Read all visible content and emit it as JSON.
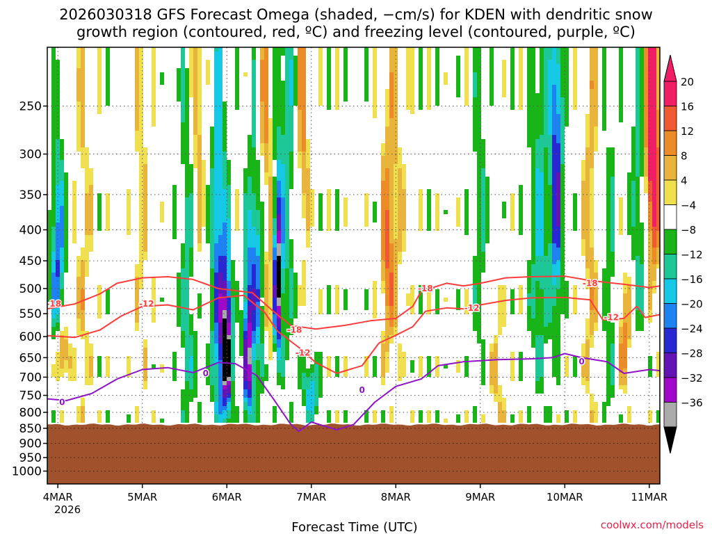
{
  "chart_data": {
    "type": "heatmap",
    "title_line1": "2026030318 GFS Forecast Omega (shaded, −cm/s) for KDEN with dendritic snow",
    "title_line2": "growth region (contoured, red, ºC) and freezing level (contoured, purple, ºC)",
    "xlabel": "Forecast Time (UTC)",
    "credit": "coolwx.com/models",
    "x_ticks": [
      "4MAR",
      "5MAR",
      "6MAR",
      "7MAR",
      "8MAR",
      "9MAR",
      "10MAR",
      "11MAR"
    ],
    "x_tick_year": "2026",
    "x_range_days": [
      3.875,
      11.125
    ],
    "y_ticks": [
      250,
      300,
      350,
      400,
      450,
      500,
      550,
      600,
      650,
      700,
      750,
      800,
      850,
      900,
      950,
      1000
    ],
    "y_range_hpa": [
      200,
      1050
    ],
    "y_scale": "log-pressure",
    "surface_pressure_hpa": 838,
    "grid": "dotted",
    "colorbar": {
      "labels": [
        "20",
        "16",
        "12",
        "8",
        "4",
        "−4",
        "−8",
        "−12",
        "−16",
        "−20",
        "−24",
        "−28",
        "−32",
        "−36"
      ],
      "colors": [
        "#f01e64",
        "#f05a32",
        "#ec8c28",
        "#e8b43c",
        "#f0e050",
        "#ffffff",
        "#18b418",
        "#1ec896",
        "#14c8e6",
        "#1e82f0",
        "#2828d2",
        "#6414b4",
        "#a008c8",
        "#aaaaaa"
      ],
      "top_triangle_color": "#f01e64",
      "bottom_triangle_color": "#000000"
    },
    "series": [
      {
        "name": "-18",
        "color": "#ff3c3c",
        "label_positions": [
          [
            3.95,
            530
          ],
          [
            6.8,
            585
          ],
          [
            8.35,
            500
          ],
          [
            10.3,
            490
          ]
        ],
        "points": [
          [
            3.875,
            540
          ],
          [
            4.2,
            530
          ],
          [
            4.5,
            510
          ],
          [
            4.7,
            490
          ],
          [
            5.0,
            480
          ],
          [
            5.3,
            478
          ],
          [
            5.6,
            483
          ],
          [
            5.9,
            500
          ],
          [
            6.3,
            508
          ],
          [
            6.55,
            545
          ],
          [
            6.75,
            575
          ],
          [
            7.05,
            583
          ],
          [
            7.4,
            575
          ],
          [
            7.7,
            565
          ],
          [
            8.0,
            560
          ],
          [
            8.2,
            535
          ],
          [
            8.3,
            505
          ],
          [
            8.6,
            490
          ],
          [
            8.8,
            495
          ],
          [
            9.0,
            490
          ],
          [
            9.3,
            480
          ],
          [
            9.6,
            478
          ],
          [
            10.0,
            477
          ],
          [
            10.3,
            485
          ],
          [
            10.7,
            492
          ],
          [
            11.0,
            498
          ],
          [
            11.125,
            495
          ]
        ]
      },
      {
        "name": "-12",
        "color": "#ff3c3c",
        "label_positions": [
          [
            5.05,
            530
          ],
          [
            6.9,
            638
          ],
          [
            8.9,
            538
          ],
          [
            10.55,
            558
          ]
        ],
        "points": [
          [
            3.875,
            598
          ],
          [
            4.2,
            602
          ],
          [
            4.5,
            585
          ],
          [
            4.75,
            555
          ],
          [
            5.0,
            535
          ],
          [
            5.3,
            532
          ],
          [
            5.6,
            542
          ],
          [
            5.9,
            518
          ],
          [
            6.2,
            513
          ],
          [
            6.45,
            548
          ],
          [
            6.6,
            588
          ],
          [
            6.85,
            625
          ],
          [
            7.05,
            662
          ],
          [
            7.3,
            690
          ],
          [
            7.6,
            670
          ],
          [
            7.8,
            615
          ],
          [
            8.0,
            597
          ],
          [
            8.2,
            578
          ],
          [
            8.35,
            545
          ],
          [
            8.6,
            538
          ],
          [
            8.8,
            540
          ],
          [
            9.0,
            532
          ],
          [
            9.3,
            523
          ],
          [
            9.6,
            518
          ],
          [
            10.0,
            517
          ],
          [
            10.3,
            522
          ],
          [
            10.45,
            563
          ],
          [
            10.7,
            560
          ],
          [
            10.85,
            535
          ],
          [
            10.95,
            558
          ],
          [
            11.125,
            552
          ]
        ]
      },
      {
        "name": "0",
        "color": "#9012c8",
        "label_positions": [
          [
            4.05,
            770
          ],
          [
            5.75,
            690
          ],
          [
            7.6,
            735
          ],
          [
            10.2,
            660
          ]
        ],
        "points": [
          [
            3.875,
            760
          ],
          [
            4.1,
            765
          ],
          [
            4.4,
            745
          ],
          [
            4.7,
            705
          ],
          [
            5.0,
            680
          ],
          [
            5.3,
            675
          ],
          [
            5.6,
            688
          ],
          [
            5.9,
            662
          ],
          [
            6.1,
            665
          ],
          [
            6.35,
            695
          ],
          [
            6.55,
            760
          ],
          [
            6.75,
            835
          ],
          [
            6.85,
            860
          ],
          [
            7.0,
            830
          ],
          [
            7.3,
            855
          ],
          [
            7.5,
            838
          ],
          [
            7.75,
            770
          ],
          [
            8.0,
            725
          ],
          [
            8.3,
            705
          ],
          [
            8.5,
            670
          ],
          [
            8.8,
            660
          ],
          [
            9.2,
            655
          ],
          [
            9.6,
            653
          ],
          [
            9.85,
            650
          ],
          [
            10.0,
            640
          ],
          [
            10.2,
            650
          ],
          [
            10.5,
            660
          ],
          [
            10.7,
            690
          ],
          [
            11.0,
            680
          ],
          [
            11.125,
            683
          ]
        ]
      }
    ],
    "omega_blobs": [
      [
        6.0,
        630,
        0.045,
        130,
        -36
      ],
      [
        6.6,
        490,
        0.035,
        100,
        -36
      ],
      [
        6.25,
        650,
        0.04,
        130,
        -28
      ],
      [
        5.9,
        500,
        0.06,
        250,
        -20
      ],
      [
        6.35,
        380,
        0.07,
        220,
        -24
      ],
      [
        4.0,
        450,
        0.06,
        120,
        -20
      ],
      [
        7.0,
        740,
        0.07,
        60,
        -16
      ],
      [
        9.9,
        330,
        0.05,
        160,
        -24
      ],
      [
        9.7,
        420,
        0.08,
        220,
        -12
      ],
      [
        10.9,
        320,
        0.07,
        160,
        -16
      ],
      [
        5.55,
        500,
        0.08,
        300,
        -10
      ],
      [
        6.7,
        300,
        0.1,
        250,
        -10
      ],
      [
        6.4,
        260,
        0.09,
        120,
        20
      ],
      [
        6.5,
        520,
        0.05,
        90,
        12
      ],
      [
        5.65,
        200,
        0.06,
        200,
        12
      ],
      [
        6.9,
        250,
        0.05,
        150,
        12
      ],
      [
        11.0,
        240,
        0.08,
        140,
        20
      ],
      [
        11.05,
        320,
        0.06,
        120,
        12
      ],
      [
        10.3,
        400,
        0.06,
        300,
        8
      ],
      [
        4.05,
        640,
        0.05,
        60,
        16
      ],
      [
        4.3,
        450,
        0.07,
        300,
        6
      ],
      [
        5.0,
        350,
        0.08,
        300,
        5
      ],
      [
        7.9,
        450,
        0.06,
        120,
        12
      ],
      [
        8.0,
        320,
        0.1,
        250,
        5
      ],
      [
        9.2,
        700,
        0.08,
        120,
        6
      ],
      [
        10.7,
        600,
        0.06,
        100,
        12
      ],
      [
        9.0,
        400,
        0.06,
        200,
        -8
      ],
      [
        10.55,
        550,
        0.06,
        260,
        -8
      ]
    ]
  }
}
